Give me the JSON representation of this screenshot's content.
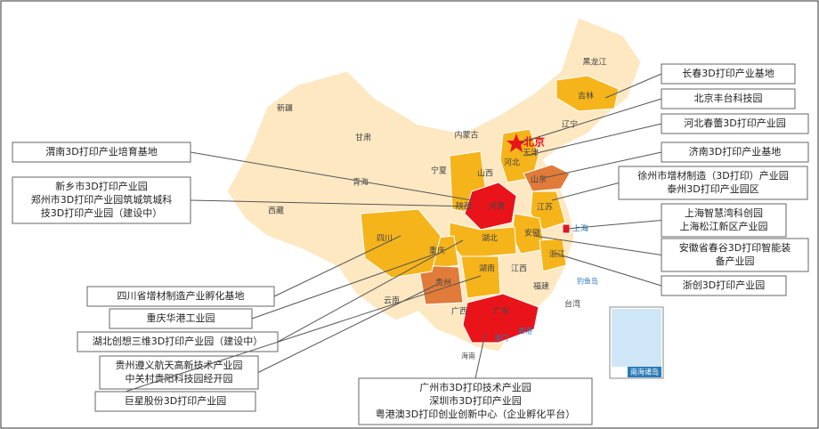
{
  "map_labels": [
    "黑龙江",
    "吉林",
    "辽宁",
    "新疆",
    "甘肃",
    "内蒙古",
    "北京",
    "天津",
    "河北",
    "宁夏",
    "山西",
    "山东",
    "青海",
    "西藏",
    "陕西",
    "河南",
    "江苏",
    "上海",
    "安徽",
    "四川",
    "重庆",
    "湖北",
    "浙江",
    "贵州",
    "湖南",
    "江西",
    "云南",
    "福建",
    "广西",
    "广东",
    "台湾",
    "钓鱼岛",
    "香港",
    "澳门",
    "海南",
    "南海诸岛"
  ],
  "callouts": [
    {
      "lines": [
        "渭南3D打印产业培育基地"
      ]
    },
    {
      "lines": [
        "新乡市3D打印产业园",
        "郑州市3D打印产业园筑城筑城科",
        "技3D打印产业园（建设中）"
      ]
    },
    {
      "lines": [
        "四川省增材制造产业孵化基地"
      ]
    },
    {
      "lines": [
        "重庆华港工业园"
      ]
    },
    {
      "lines": [
        "湖北创想三维3D打印产业园（建设中）"
      ]
    },
    {
      "lines": [
        "贵州遵义航天高新技术产业园",
        "中关村贵阳科技园经开园"
      ]
    },
    {
      "lines": [
        "巨星股份3D打印产业园"
      ]
    },
    {
      "lines": [
        "长春3D打印产业基地"
      ]
    },
    {
      "lines": [
        "北京丰台科技园"
      ]
    },
    {
      "lines": [
        "河北春蕾3D打印产业园"
      ]
    },
    {
      "lines": [
        "济南3D打印产业基地"
      ]
    },
    {
      "lines": [
        "徐州市增材制造（3D打印）产业园",
        "泰州3D打印产业园区"
      ]
    },
    {
      "lines": [
        "上海智慧湾科创园",
        "上海松江新区产业园"
      ]
    },
    {
      "lines": [
        "安徽省春谷3D打印智能装",
        "备产业园"
      ]
    },
    {
      "lines": [
        "浙创3D打印产业园"
      ]
    },
    {
      "lines": [
        "广州市3D打印技术产业园",
        "深圳市3D打印产业园",
        "粤港澳3D打印创业创新中心（企业孵化平台）"
      ]
    }
  ]
}
